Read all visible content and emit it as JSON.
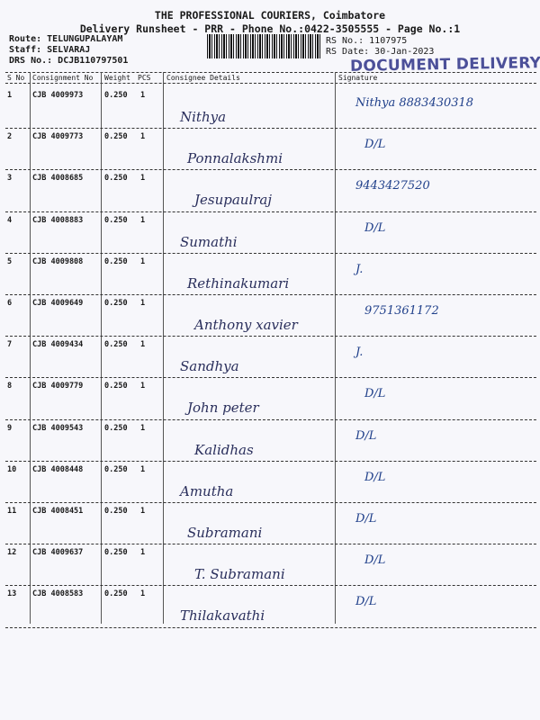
{
  "header": {
    "title": "THE PROFESSIONAL COURIERS, Coimbatore",
    "subtitle": "Delivery Runsheet - PRR - Phone No.:0422-3505555 - Page No.:1",
    "route": "Route: TELUNGUPALAYAM",
    "staff": "Staff: SELVARAJ",
    "drs_no": "DRS No.: DCJB110797501",
    "rs_no": "RS No.: 1107975",
    "rs_date": "RS Date: 30-Jan-2023",
    "stamp": "DOCUMENT DELIVERY"
  },
  "columns": [
    "S No",
    "Consignment No",
    "Weight",
    "PCS",
    "Consignee Details",
    "Signature"
  ],
  "ink_color": "#1f3f8a",
  "stamp_color": "#3a3f8f",
  "rows": [
    {
      "sno": "1",
      "consignment": "CJB 4009973",
      "weight": "0.250",
      "pcs": "1",
      "consignee": "Nithya",
      "signature": "Nithya 8883430318"
    },
    {
      "sno": "2",
      "consignment": "CJB 4009773",
      "weight": "0.250",
      "pcs": "1",
      "consignee": "Ponnalakshmi",
      "signature": "D/L"
    },
    {
      "sno": "3",
      "consignment": "CJB 4008685",
      "weight": "0.250",
      "pcs": "1",
      "consignee": "Jesupaulraj",
      "signature": "9443427520"
    },
    {
      "sno": "4",
      "consignment": "CJB 4008883",
      "weight": "0.250",
      "pcs": "1",
      "consignee": "Sumathi",
      "signature": "D/L"
    },
    {
      "sno": "5",
      "consignment": "CJB 4009808",
      "weight": "0.250",
      "pcs": "1",
      "consignee": "Rethinakumari",
      "signature": "J."
    },
    {
      "sno": "6",
      "consignment": "CJB 4009649",
      "weight": "0.250",
      "pcs": "1",
      "consignee": "Anthony xavier",
      "signature": "9751361172"
    },
    {
      "sno": "7",
      "consignment": "CJB 4009434",
      "weight": "0.250",
      "pcs": "1",
      "consignee": "Sandhya",
      "signature": "J."
    },
    {
      "sno": "8",
      "consignment": "CJB 4009779",
      "weight": "0.250",
      "pcs": "1",
      "consignee": "John peter",
      "signature": "D/L"
    },
    {
      "sno": "9",
      "consignment": "CJB 4009543",
      "weight": "0.250",
      "pcs": "1",
      "consignee": "Kalidhas",
      "signature": "D/L"
    },
    {
      "sno": "10",
      "consignment": "CJB 4008448",
      "weight": "0.250",
      "pcs": "1",
      "consignee": "Amutha",
      "signature": "D/L"
    },
    {
      "sno": "11",
      "consignment": "CJB 4008451",
      "weight": "0.250",
      "pcs": "1",
      "consignee": "Subramani",
      "signature": "D/L"
    },
    {
      "sno": "12",
      "consignment": "CJB 4009637",
      "weight": "0.250",
      "pcs": "1",
      "consignee": "T. Subramani",
      "signature": "D/L"
    },
    {
      "sno": "13",
      "consignment": "CJB 4008583",
      "weight": "0.250",
      "pcs": "1",
      "consignee": "Thilakavathi",
      "signature": "D/L"
    }
  ]
}
